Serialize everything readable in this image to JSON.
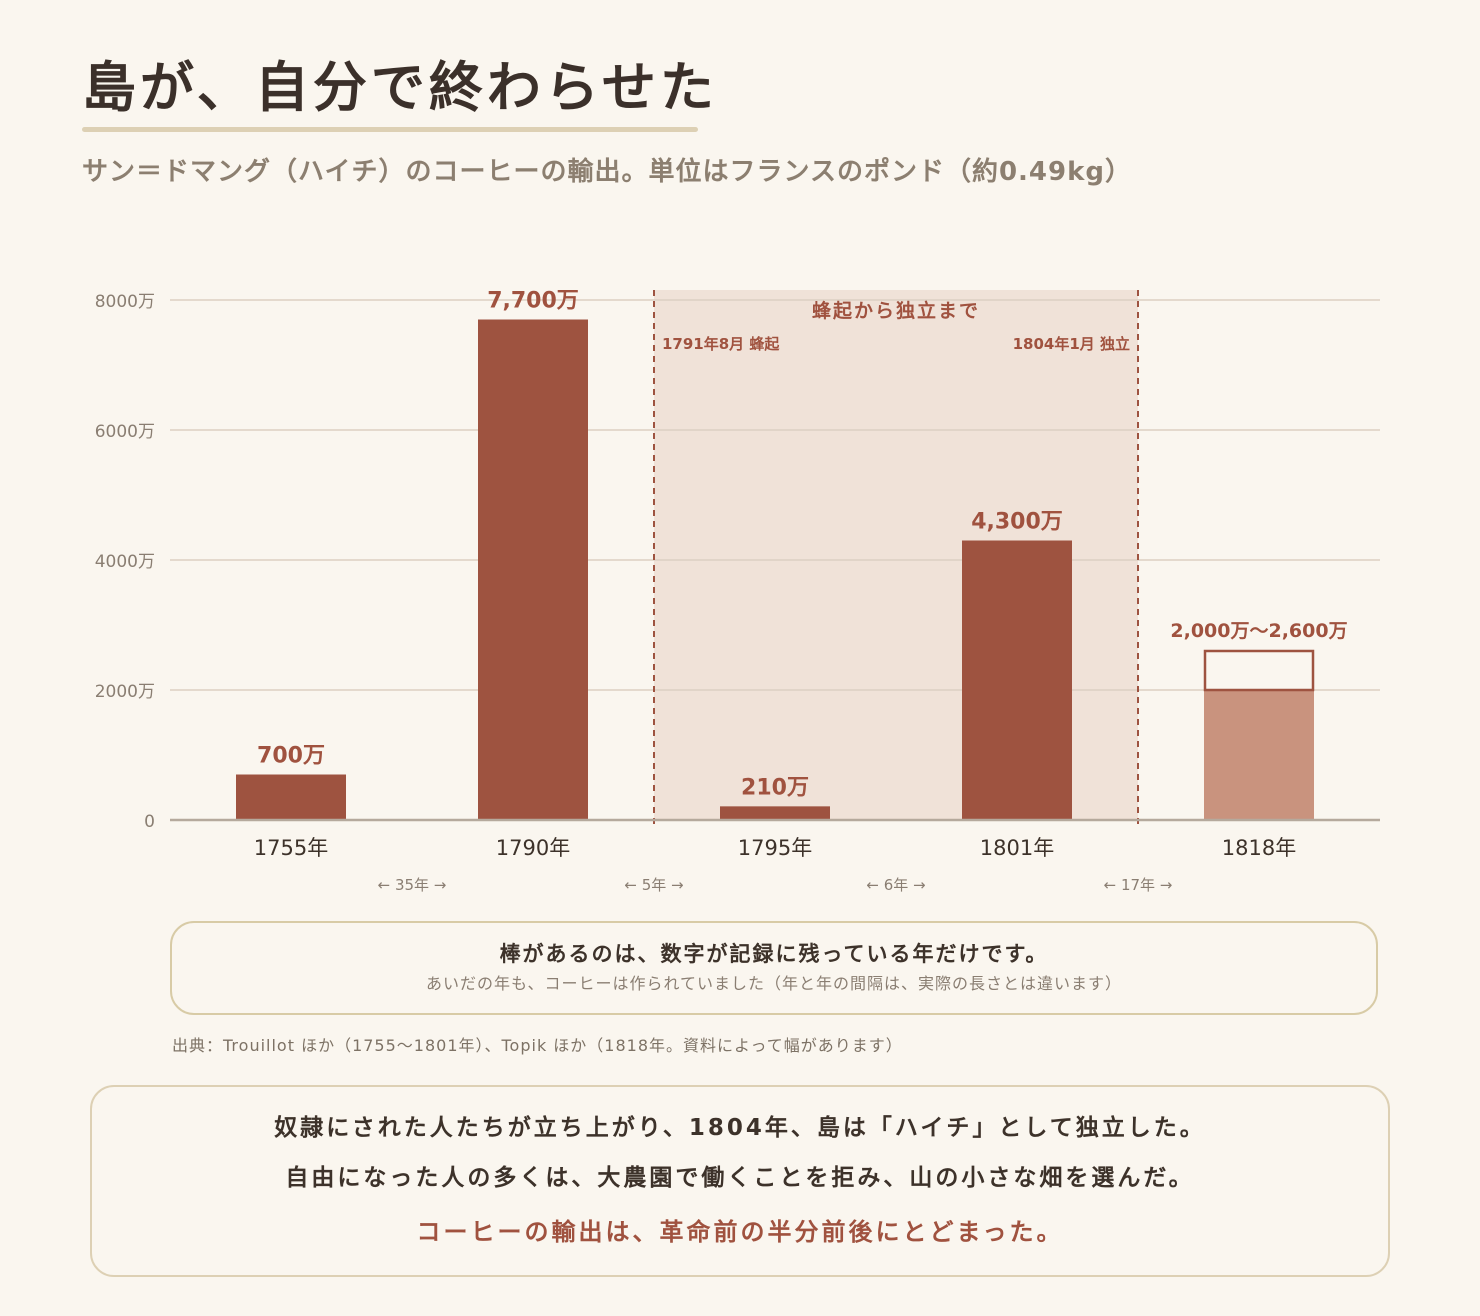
{
  "page": {
    "title": "島が、自分で終わらせた",
    "subtitle": "サン＝ドマング（ハイチ）のコーヒーの輸出。単位はフランスのポンド（約0.49kg）"
  },
  "colors": {
    "background": "#faf6ef",
    "bar": "#9e5340",
    "bar_light": "#c9937e",
    "band": "#f0e2d8",
    "accent_text": "#a0523f",
    "grid": "#dccfc2"
  },
  "chart_data": {
    "type": "bar",
    "categories": [
      "1755年",
      "1790年",
      "1795年",
      "1801年",
      "1818年"
    ],
    "values": [
      7000000,
      77000000,
      2100000,
      43000000,
      20000000
    ],
    "value_labels": [
      "700万",
      "7,700万",
      "210万",
      "4,300万",
      "2,000万～2,600万"
    ],
    "range_high": {
      "category": "1818年",
      "low": 20000000,
      "high": 26000000
    },
    "ylim": [
      0,
      80000000
    ],
    "yticks": [
      0,
      20000000,
      40000000,
      60000000,
      80000000
    ],
    "ytick_labels": [
      "0",
      "2000万",
      "4000万",
      "6000万",
      "8000万"
    ],
    "gaps": [
      "← 35年 →",
      "← 5年 →",
      "← 6年 →",
      "← 17年 →"
    ],
    "grid": true,
    "highlight_band": {
      "title": "蜂起から独立まで",
      "start_label": "1791年8月 蜂起",
      "end_label": "1804年1月 独立"
    }
  },
  "note": {
    "main": "棒があるのは、数字が記録に残っている年だけです。",
    "sub": "あいだの年も、コーヒーは作られていました（年と年の間隔は、実際の長さとは違います）"
  },
  "source": "出典：Trouillot ほか（1755～1801年）、Topik ほか（1818年。資料によって幅があります）",
  "summary": {
    "line1": "奴隷にされた人たちが立ち上がり、1804年、島は「ハイチ」として独立した。",
    "line2": "自由になった人の多くは、大農園で働くことを拒み、山の小さな畑を選んだ。",
    "line3": "コーヒーの輸出は、革命前の半分前後にとどまった。"
  }
}
